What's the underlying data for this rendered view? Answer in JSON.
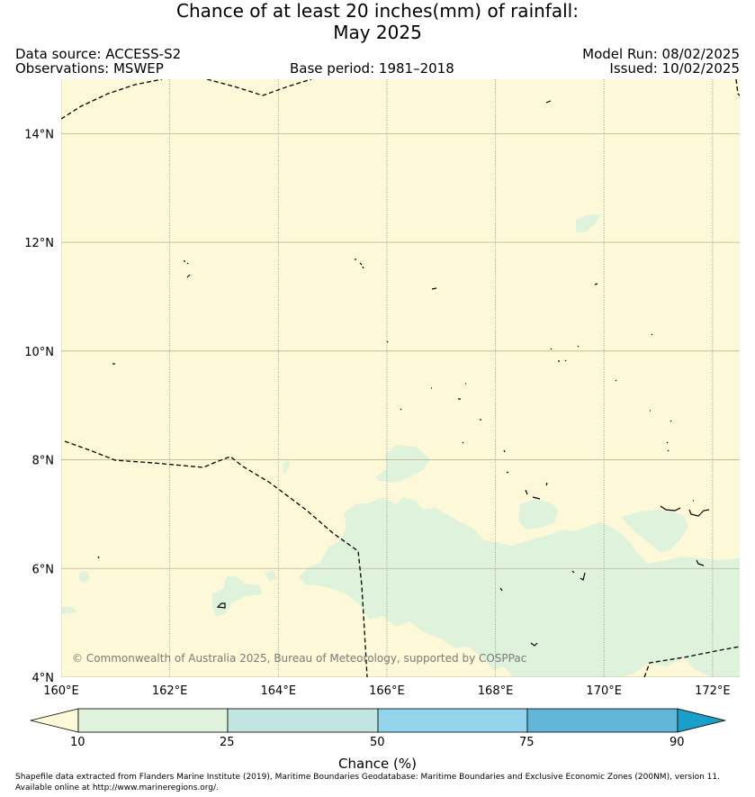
{
  "title": {
    "line1": "Chance of at least 20 inches(mm) of rainfall:",
    "line2": "May 2025"
  },
  "header": {
    "data_source": "Data source: ACCESS-S2",
    "observations": "Observations: MSWEP",
    "base_period": "Base period: 1981–2018",
    "model_run": "Model Run: 08/02/2025",
    "issued": "Issued: 10/02/2025"
  },
  "map": {
    "extent": {
      "lon": [
        160,
        172.5
      ],
      "lat": [
        4,
        15
      ]
    },
    "lat_ticks": [
      {
        "value": 14,
        "label": "14°N"
      },
      {
        "value": 12,
        "label": "12°N"
      },
      {
        "value": 10,
        "label": "10°N"
      },
      {
        "value": 8,
        "label": "8°N"
      },
      {
        "value": 6,
        "label": "6°N"
      },
      {
        "value": 4,
        "label": "4°N"
      }
    ],
    "lon_ticks": [
      {
        "value": 160,
        "label": "160°E"
      },
      {
        "value": 162,
        "label": "162°E"
      },
      {
        "value": 164,
        "label": "164°E"
      },
      {
        "value": 166,
        "label": "166°E"
      },
      {
        "value": 168,
        "label": "168°E"
      },
      {
        "value": 170,
        "label": "170°E"
      },
      {
        "value": 172,
        "label": "172°E"
      }
    ],
    "background_color": "#fdf8d7",
    "shade_color": "#dff3dc",
    "copyright": "© Commonwealth of Australia 2025, Bureau of Meteorology, supported by COSPPac"
  },
  "colorbar": {
    "title": "Chance (%)",
    "ticks": [
      "10",
      "25",
      "50",
      "75",
      "90"
    ],
    "colors": [
      "#fdf8d7",
      "#dff3dc",
      "#c2e4e2",
      "#93d4ea",
      "#62b6d7",
      "#1aa0c8"
    ]
  },
  "footer": {
    "line1": "Shapefile data extracted from Flanders Marine Institute (2019), Maritime Boundaries Geodatabase: Maritime Boundaries and Exclusive Economic Zones (200NM), version 11.",
    "line2": "Available online at http://www.marineregions.org/."
  }
}
